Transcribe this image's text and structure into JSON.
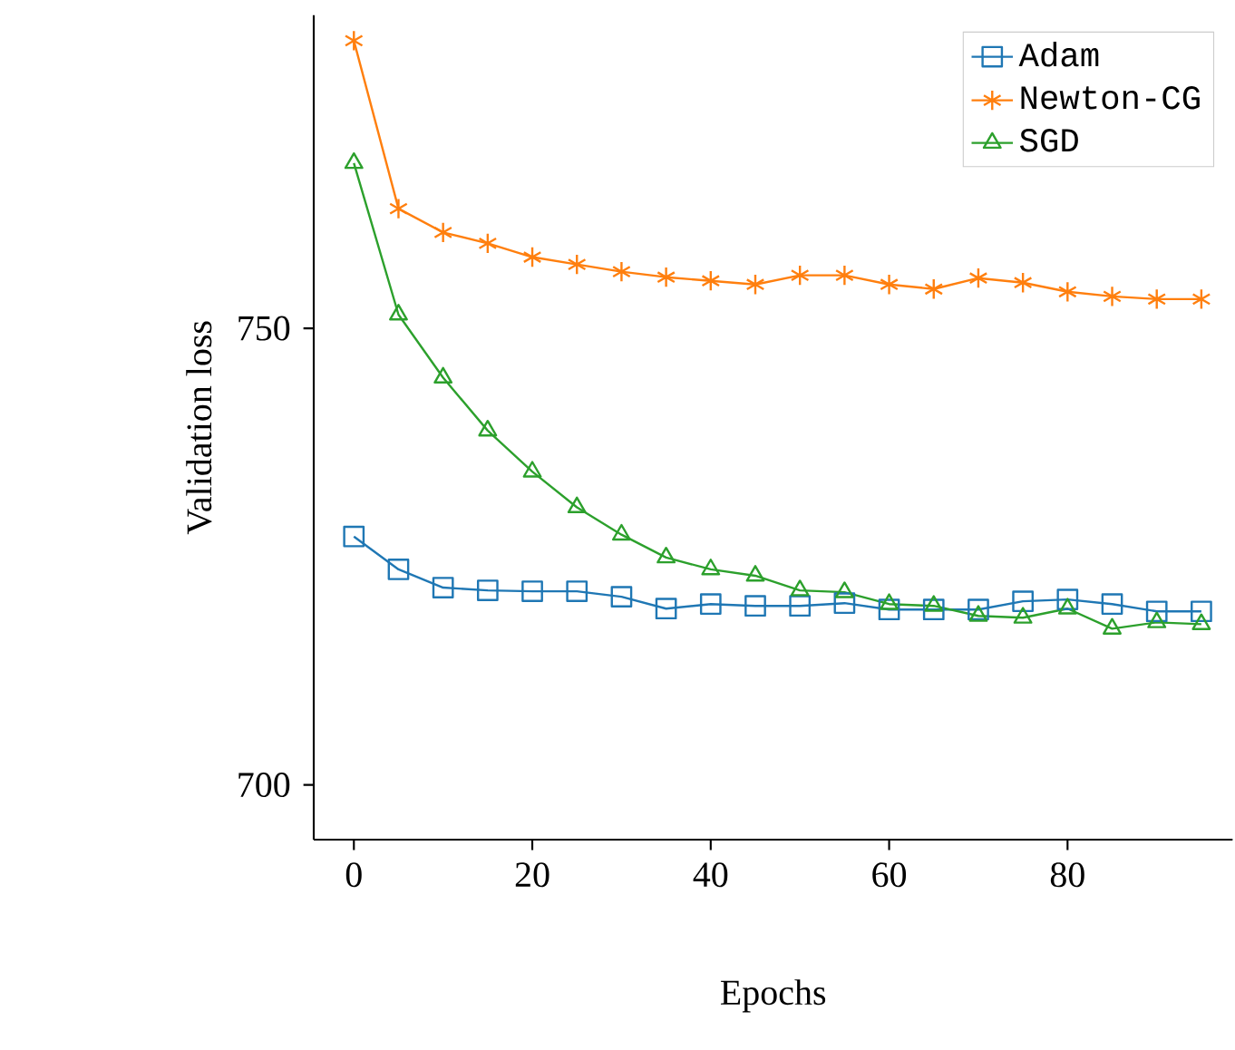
{
  "chart_data": {
    "type": "line",
    "xlabel": "Epochs",
    "ylabel": "Validation loss",
    "x": [
      0,
      5,
      10,
      15,
      20,
      25,
      30,
      35,
      40,
      45,
      50,
      55,
      60,
      65,
      70,
      75,
      80,
      85,
      90,
      95
    ],
    "series": [
      {
        "name": "Adam",
        "color": "#1f77b4",
        "marker": "square",
        "values": [
          727.2,
          723.6,
          721.6,
          721.3,
          721.2,
          721.2,
          720.6,
          719.3,
          719.8,
          719.6,
          719.6,
          719.9,
          719.2,
          719.2,
          719.2,
          720.1,
          720.3,
          719.8,
          719.0,
          719.0
        ]
      },
      {
        "name": "Newton-CG",
        "color": "#ff7f0e",
        "marker": "cross",
        "values": [
          781.5,
          763.1,
          760.5,
          759.3,
          757.8,
          757.0,
          756.2,
          755.6,
          755.2,
          754.8,
          755.8,
          755.8,
          754.8,
          754.3,
          755.5,
          755.0,
          754.0,
          753.5,
          753.2,
          753.2
        ]
      },
      {
        "name": "SGD",
        "color": "#2ca02c",
        "marker": "triangle",
        "values": [
          768.1,
          751.5,
          744.6,
          738.8,
          734.3,
          730.4,
          727.4,
          724.9,
          723.6,
          722.9,
          721.3,
          721.1,
          719.8,
          719.6,
          718.5,
          718.3,
          719.3,
          717.1,
          717.8,
          717.6
        ]
      }
    ],
    "xlim": [
      -4.5,
      98.5
    ],
    "ylim": [
      694,
      784.3
    ],
    "xticks": [
      0,
      20,
      40,
      60,
      80
    ],
    "yticks": [
      700,
      750
    ],
    "grid": false,
    "legend": "top right",
    "line_style": "solid"
  }
}
